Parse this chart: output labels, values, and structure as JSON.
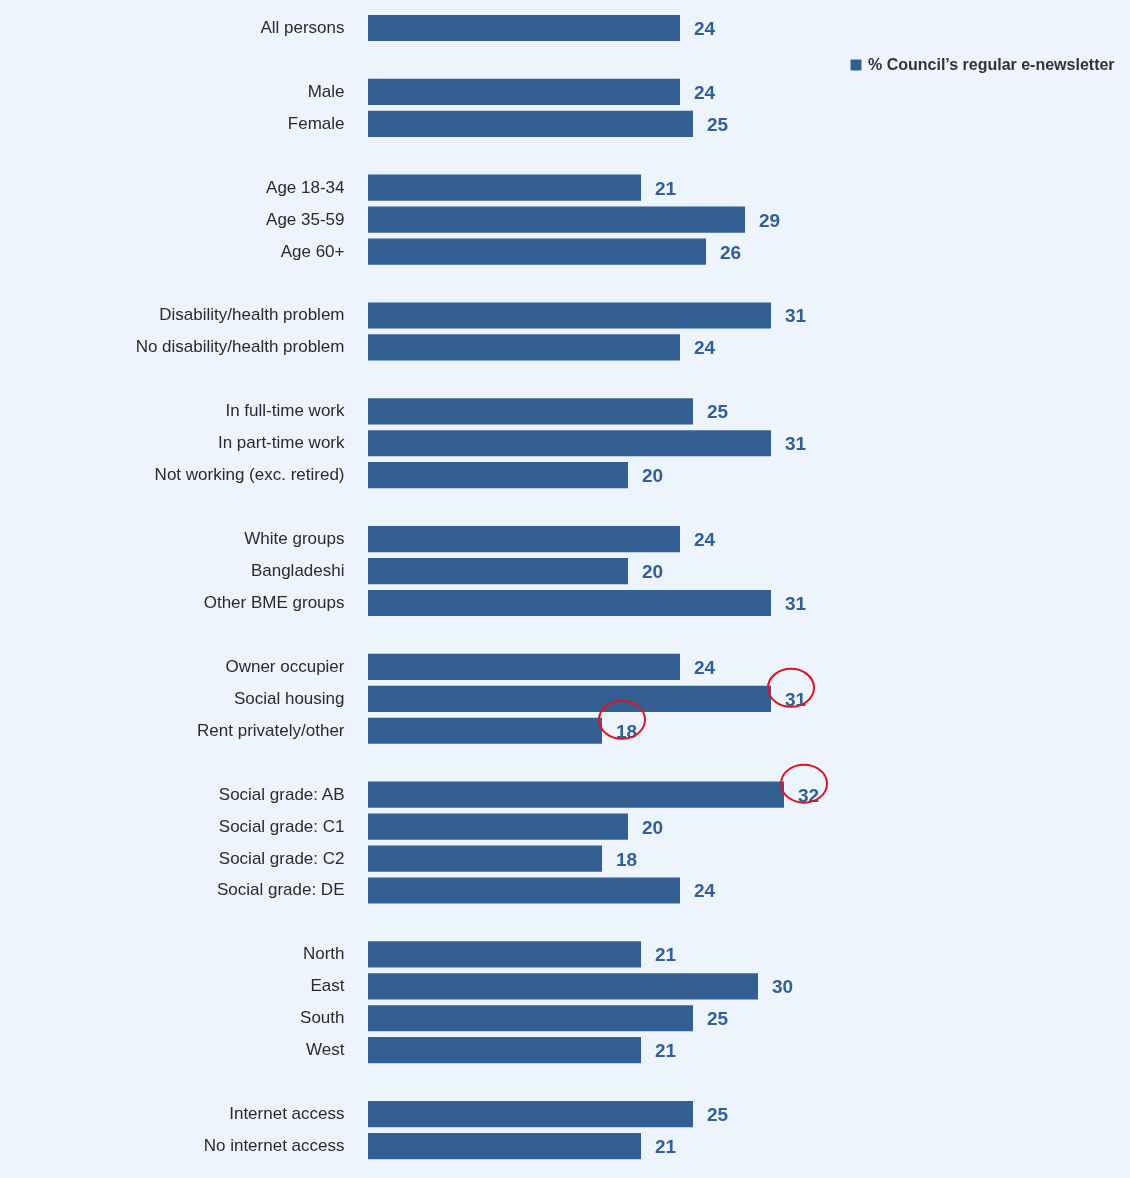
{
  "chart_data": {
    "type": "bar",
    "orientation": "horizontal",
    "data_labels": true,
    "grid": false,
    "legend": "top right",
    "categories": [
      "All persons",
      null,
      "Male",
      "Female",
      null,
      "Age 18-34",
      "Age 35-59",
      "Age 60+",
      null,
      "Disability/health problem",
      "No disability/health problem",
      null,
      "In full-time work",
      "In part-time work",
      "Not working (exc. retired)",
      null,
      "White groups",
      "Bangladeshi",
      "Other BME groups",
      null,
      "Owner occupier",
      "Social housing",
      "Rent privately/other",
      null,
      "Social grade: AB",
      "Social grade: C1",
      "Social grade: C2",
      "Social grade: DE",
      null,
      "North",
      "East",
      "South",
      "West",
      null,
      "Internet access",
      "No internet access"
    ],
    "series": [
      {
        "name": "% Council’s regular e-newsletter",
        "color": "#335f93",
        "values": [
          24,
          null,
          24,
          25,
          null,
          21,
          29,
          26,
          null,
          31,
          24,
          null,
          25,
          31,
          20,
          null,
          24,
          20,
          31,
          null,
          24,
          31,
          18,
          null,
          32,
          20,
          18,
          24,
          null,
          21,
          30,
          25,
          21,
          null,
          25,
          21
        ]
      }
    ]
  }
}
